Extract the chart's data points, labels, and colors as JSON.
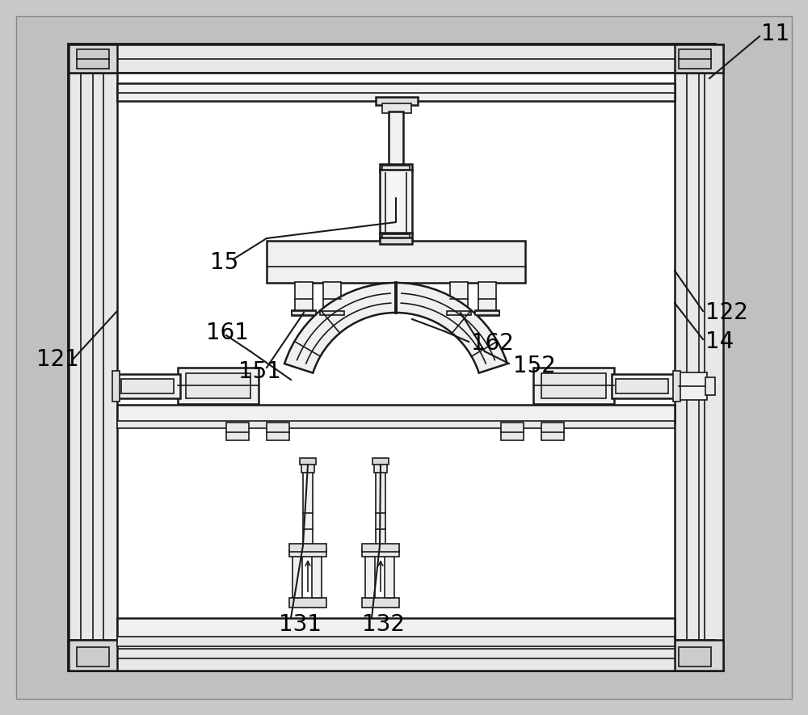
{
  "bg_outer": "#c8c8c8",
  "bg_inner": "#ffffff",
  "bg_frame": "#e8e8e8",
  "lc": "#1a1a1a",
  "lc_light": "#555555",
  "label_fs": 20,
  "lw_thick": 2.8,
  "lw_med": 1.8,
  "lw_thin": 1.2
}
